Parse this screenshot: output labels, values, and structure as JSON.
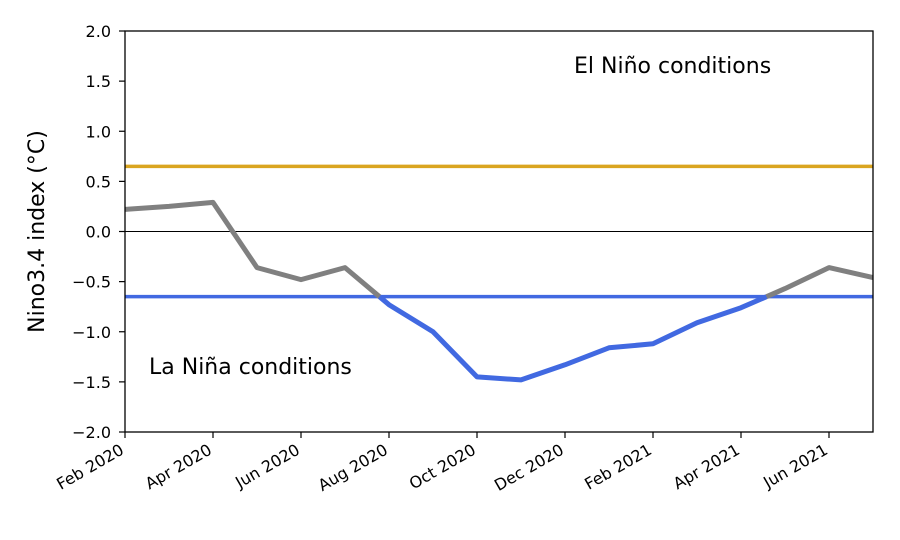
{
  "chart_data": {
    "type": "line",
    "title": "",
    "xlabel": "",
    "ylabel": "Nino3.4 index (°C)",
    "ylim": [
      -2.0,
      2.0
    ],
    "xlim": [
      "2020-02",
      "2021-07"
    ],
    "grid": false,
    "y_ticks": [
      -2.0,
      -1.5,
      -1.0,
      -0.5,
      0.0,
      0.5,
      1.0,
      1.5,
      2.0
    ],
    "y_tick_labels": [
      "−2.0",
      "−1.5",
      "−1.0",
      "−0.5",
      "0.0",
      "0.5",
      "1.0",
      "1.5",
      "2.0"
    ],
    "x_tick_labels": [
      "Feb 2020",
      "Apr 2020",
      "Jun 2020",
      "Aug 2020",
      "Oct 2020",
      "Dec 2020",
      "Feb 2021",
      "Apr 2021",
      "Jun 2021"
    ],
    "x_tick_dates": [
      "2020-02",
      "2020-04",
      "2020-06",
      "2020-08",
      "2020-10",
      "2020-12",
      "2021-02",
      "2021-04",
      "2021-06"
    ],
    "series": [
      {
        "x": [
          "2020-02",
          "2020-03",
          "2020-04",
          "2020-05",
          "2020-06",
          "2020-07",
          "2020-08",
          "2020-09",
          "2020-10",
          "2020-11",
          "2020-12",
          "2021-01",
          "2021-02",
          "2021-03",
          "2021-04",
          "2021-05",
          "2021-06",
          "2021-07"
        ],
        "values": [
          0.22,
          0.25,
          0.29,
          -0.36,
          -0.48,
          -0.36,
          -0.73,
          -1.0,
          -1.45,
          -1.48,
          -1.33,
          -1.16,
          -1.12,
          -0.91,
          -0.76,
          -0.57,
          -0.36,
          -0.46
        ],
        "color_above": "#808080",
        "color_below": "#4169e1"
      }
    ],
    "reference_lines": [
      {
        "y": 0.65,
        "color": "#daa520"
      },
      {
        "y": -0.65,
        "color": "#4169e1"
      },
      {
        "y": 0.0,
        "color": "#000000"
      }
    ],
    "annotations": [
      {
        "text": "El Niño conditions",
        "date": "2021-01",
        "y": 1.58
      },
      {
        "text": "La Niña conditions",
        "date": "2020-03",
        "y": -1.42
      }
    ]
  }
}
